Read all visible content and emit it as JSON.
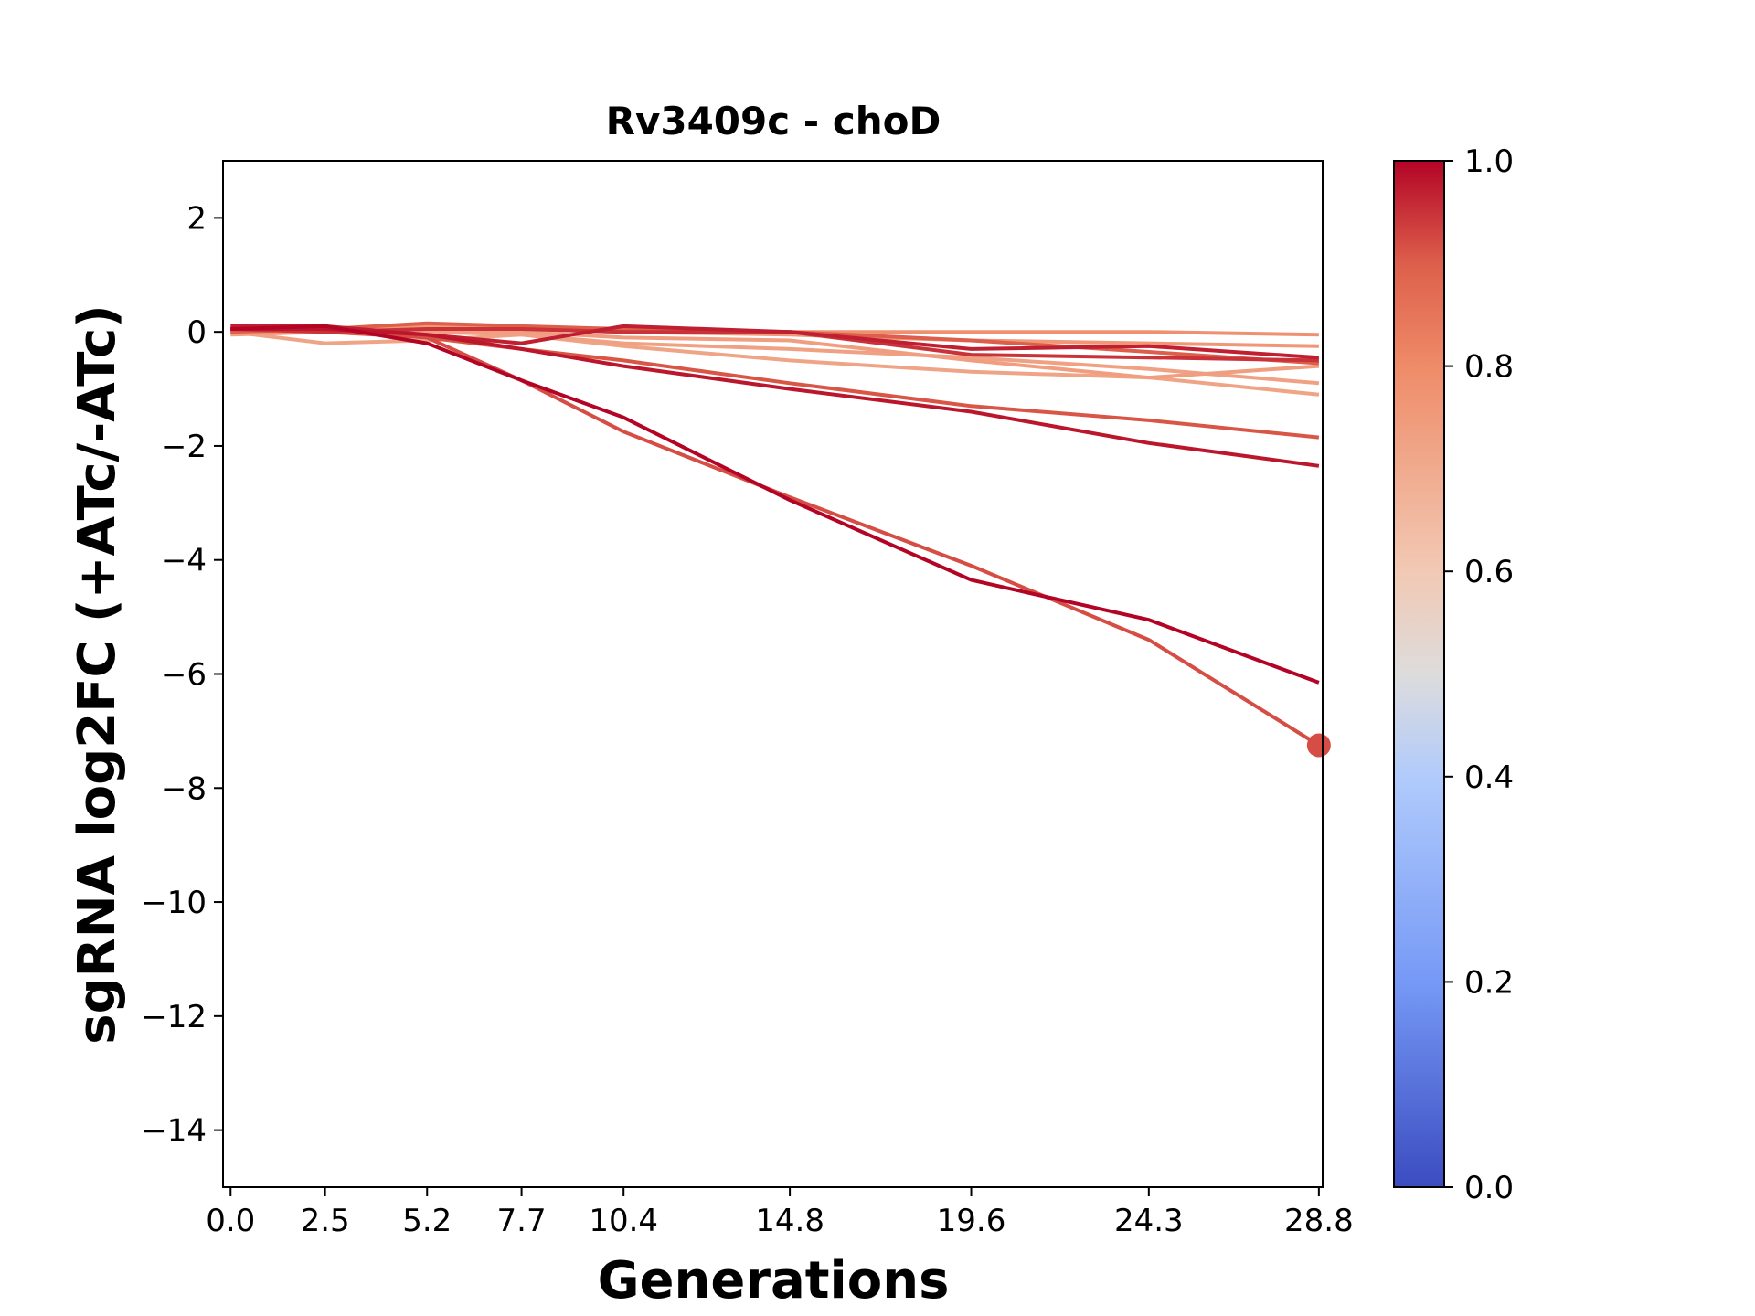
{
  "chart_data": {
    "type": "line",
    "title": "Rv3409c - choD",
    "xlabel": "Generations",
    "ylabel": "sgRNA log2FC (+ATc/-ATc)",
    "x": [
      0.0,
      2.5,
      5.2,
      7.7,
      10.4,
      14.8,
      19.6,
      24.3,
      28.8
    ],
    "x_tick_labels": [
      "0.0",
      "2.5",
      "5.2",
      "7.7",
      "10.4",
      "14.8",
      "19.6",
      "24.3",
      "28.8"
    ],
    "xlim": [
      -0.2,
      28.9
    ],
    "ylim": [
      -15,
      3
    ],
    "y_ticks": [
      2,
      0,
      -2,
      -4,
      -6,
      -8,
      -10,
      -12,
      -14
    ],
    "y_tick_labels": [
      "2",
      "0",
      "−2",
      "−4",
      "−6",
      "−8",
      "−10",
      "−12",
      "−14"
    ],
    "colormap": "coolwarm",
    "colorbar": {
      "ticks": [
        0.0,
        0.2,
        0.4,
        0.6,
        0.8,
        1.0
      ],
      "tick_labels": [
        "0.0",
        "0.2",
        "0.4",
        "0.6",
        "0.8",
        "1.0"
      ],
      "gradient": [
        {
          "v": 0.0,
          "color": "#3b4cc0"
        },
        {
          "v": 0.2,
          "color": "#7699f6"
        },
        {
          "v": 0.4,
          "color": "#b1cbfc"
        },
        {
          "v": 0.5,
          "color": "#dddcdc"
        },
        {
          "v": 0.6,
          "color": "#f2c9b4"
        },
        {
          "v": 0.8,
          "color": "#ef8b68"
        },
        {
          "v": 0.9,
          "color": "#dd5f4b"
        },
        {
          "v": 1.0,
          "color": "#b40426"
        }
      ]
    },
    "series": [
      {
        "color_value": 0.72,
        "values": [
          0.0,
          -0.2,
          -0.15,
          -0.05,
          -0.25,
          -0.5,
          -0.7,
          -0.8,
          -1.1
        ]
      },
      {
        "color_value": 0.73,
        "values": [
          -0.05,
          0.0,
          0.0,
          -0.05,
          -0.2,
          -0.3,
          -0.45,
          -0.65,
          -0.9
        ]
      },
      {
        "color_value": 0.74,
        "values": [
          0.0,
          0.0,
          0.05,
          0.0,
          -0.1,
          -0.15,
          -0.5,
          -0.8,
          -0.6
        ]
      },
      {
        "color_value": 0.76,
        "values": [
          0.0,
          0.05,
          0.1,
          0.05,
          0.0,
          -0.05,
          -0.15,
          -0.2,
          -0.25
        ]
      },
      {
        "color_value": 0.78,
        "values": [
          0.0,
          0.0,
          0.05,
          0.05,
          0.05,
          0.0,
          0.0,
          0.0,
          -0.05
        ]
      },
      {
        "color_value": 0.9,
        "values": [
          0.0,
          0.05,
          0.15,
          0.1,
          0.05,
          0.0,
          -0.15,
          -0.35,
          -0.55
        ]
      },
      {
        "color_value": 0.91,
        "values": [
          0.05,
          0.0,
          -0.1,
          -0.3,
          -0.5,
          -0.9,
          -1.3,
          -1.55,
          -1.85
        ]
      },
      {
        "color_value": 0.92,
        "values": [
          0.05,
          0.05,
          -0.1,
          -0.85,
          -1.75,
          -2.9,
          -4.1,
          -5.4,
          -7.25
        ],
        "marker_at_end": true
      },
      {
        "color_value": 0.95,
        "values": [
          0.05,
          0.0,
          0.05,
          0.05,
          0.0,
          0.0,
          -0.4,
          -0.45,
          -0.5
        ]
      },
      {
        "color_value": 0.97,
        "values": [
          0.1,
          0.1,
          -0.05,
          -0.2,
          0.1,
          0.0,
          -0.3,
          -0.25,
          -0.45
        ]
      },
      {
        "color_value": 0.98,
        "values": [
          0.05,
          0.05,
          -0.05,
          -0.3,
          -0.6,
          -1.0,
          -1.4,
          -1.95,
          -2.35
        ]
      },
      {
        "color_value": 1.0,
        "values": [
          0.05,
          0.1,
          -0.2,
          -0.85,
          -1.5,
          -2.95,
          -4.35,
          -5.05,
          -6.15
        ]
      }
    ]
  }
}
